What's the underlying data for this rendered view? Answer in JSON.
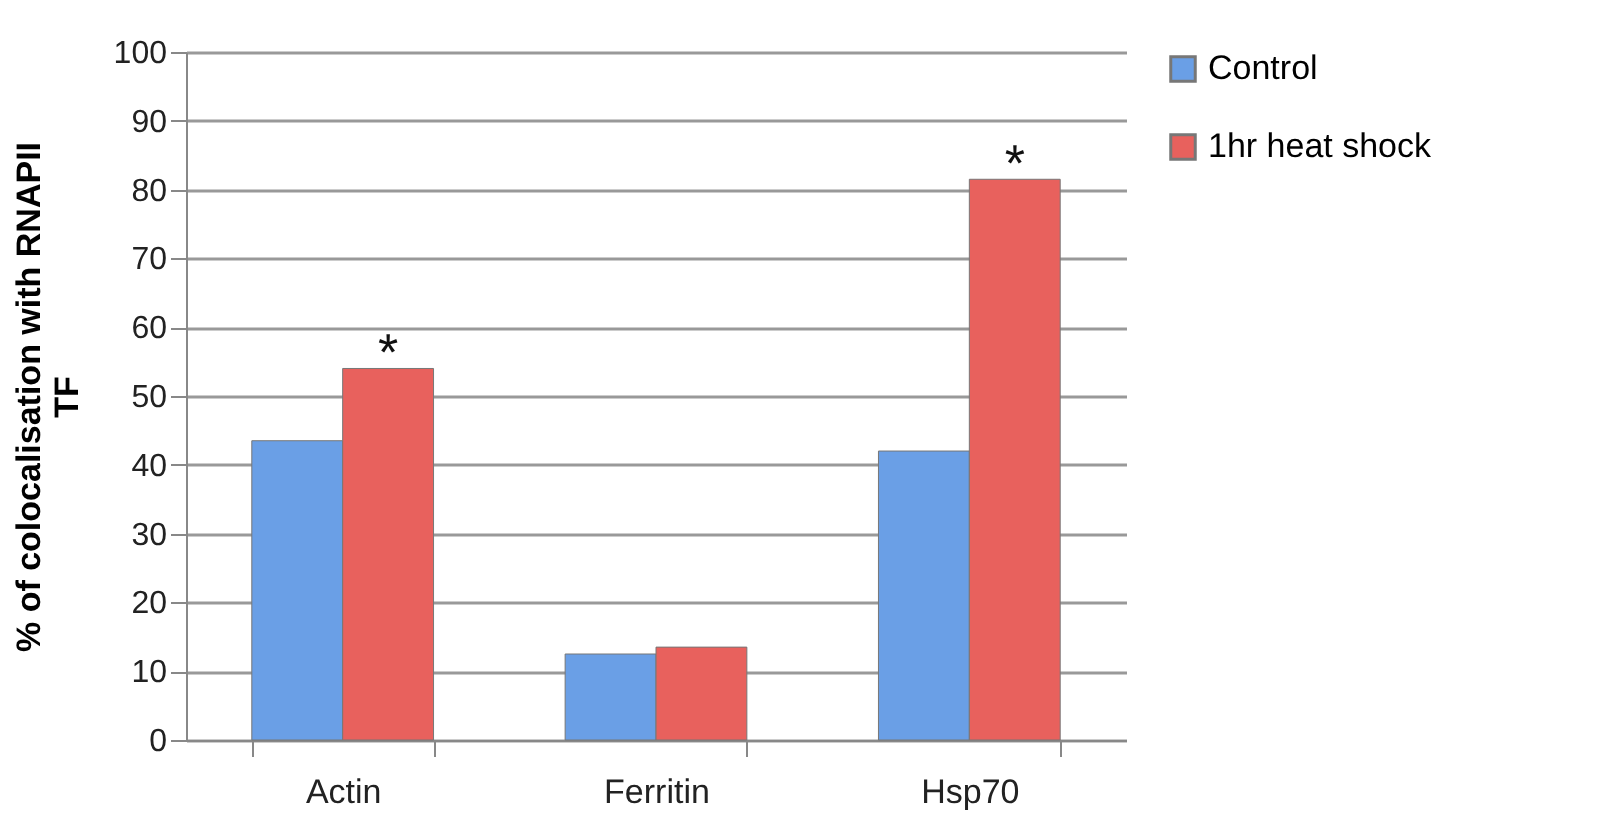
{
  "chart_data": {
    "type": "bar",
    "ylabel": "% of colocalisation with RNAPII TF",
    "categories": [
      "Actin",
      "Ferritin",
      "Hsp70"
    ],
    "series": [
      {
        "name": "Control",
        "color": "#6a9fe6",
        "values": [
          43.5,
          12.5,
          42
        ]
      },
      {
        "name": "1hr heat shock",
        "color": "#e8615d",
        "values": [
          54,
          13.5,
          81.5
        ]
      }
    ],
    "ylim": [
      0,
      100
    ],
    "yticks": [
      0,
      10,
      20,
      30,
      40,
      50,
      60,
      70,
      80,
      90,
      100
    ],
    "grid": "y",
    "legend": "right",
    "annotations": [
      {
        "text": "*",
        "x": "Actin",
        "y": 54
      },
      {
        "text": "*",
        "x": "Hsp70",
        "y": 81.5
      }
    ]
  }
}
